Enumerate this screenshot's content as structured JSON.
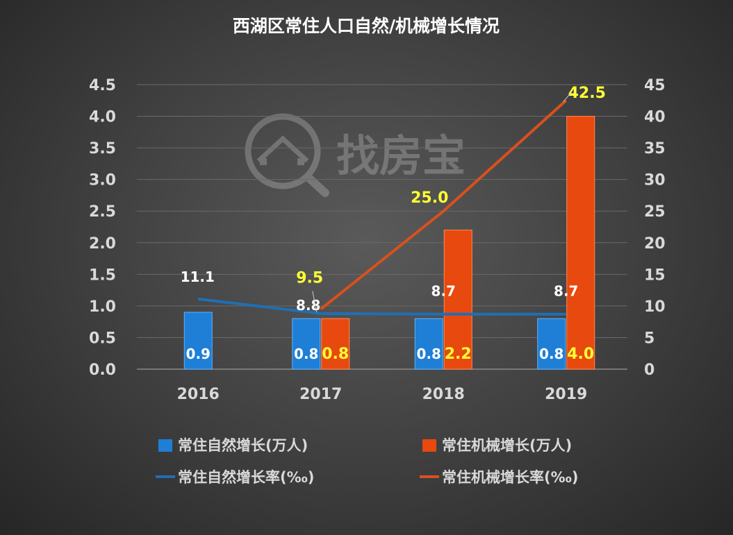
{
  "title": "西湖区常住人口自然/机械增长情况",
  "watermark": "找房宝",
  "colors": {
    "background": "#3a3a3a",
    "bar_natural": "#1f7fd6",
    "bar_mech": "#e8490f",
    "line_natural": "#1f6fb5",
    "line_mech": "#d9501e",
    "label_white": "#ffffff",
    "label_yellow": "#ffff33",
    "axis_text": "#d9d9d9",
    "gridline": "#6a6a6a"
  },
  "chart_data": {
    "type": "bar",
    "categories": [
      "2016",
      "2017",
      "2018",
      "2019"
    ],
    "y_left": {
      "min": 0,
      "max": 4.5,
      "step": 0.5,
      "ticks": [
        "0.0",
        "0.5",
        "1.0",
        "1.5",
        "2.0",
        "2.5",
        "3.0",
        "3.5",
        "4.0",
        "4.5"
      ]
    },
    "y_right": {
      "min": 0,
      "max": 45,
      "step": 5,
      "ticks": [
        "0",
        "5",
        "10",
        "15",
        "20",
        "25",
        "30",
        "35",
        "40",
        "45"
      ]
    },
    "grid": true,
    "legend_position": "bottom",
    "bar_series": [
      {
        "name": "常住自然增长(万人)",
        "axis": "left",
        "values": [
          0.9,
          0.8,
          0.8,
          0.8
        ],
        "labels": [
          "0.9",
          "0.8",
          "0.8",
          "0.8"
        ]
      },
      {
        "name": "常住机械增长(万人)",
        "axis": "left",
        "values": [
          null,
          0.8,
          2.2,
          4.0
        ],
        "labels": [
          "",
          "0.8",
          "2.2",
          "4.0"
        ]
      }
    ],
    "line_series": [
      {
        "name": "常住自然增长率(‰)",
        "axis": "right",
        "values": [
          11.1,
          8.8,
          8.7,
          8.7
        ],
        "labels": [
          "11.1",
          "8.8",
          "8.7",
          "8.7"
        ]
      },
      {
        "name": "常住机械增长率(‰)",
        "axis": "right",
        "values": [
          null,
          9.5,
          25.0,
          42.5
        ],
        "labels": [
          "",
          "9.5",
          "25.0",
          "42.5"
        ]
      }
    ]
  }
}
